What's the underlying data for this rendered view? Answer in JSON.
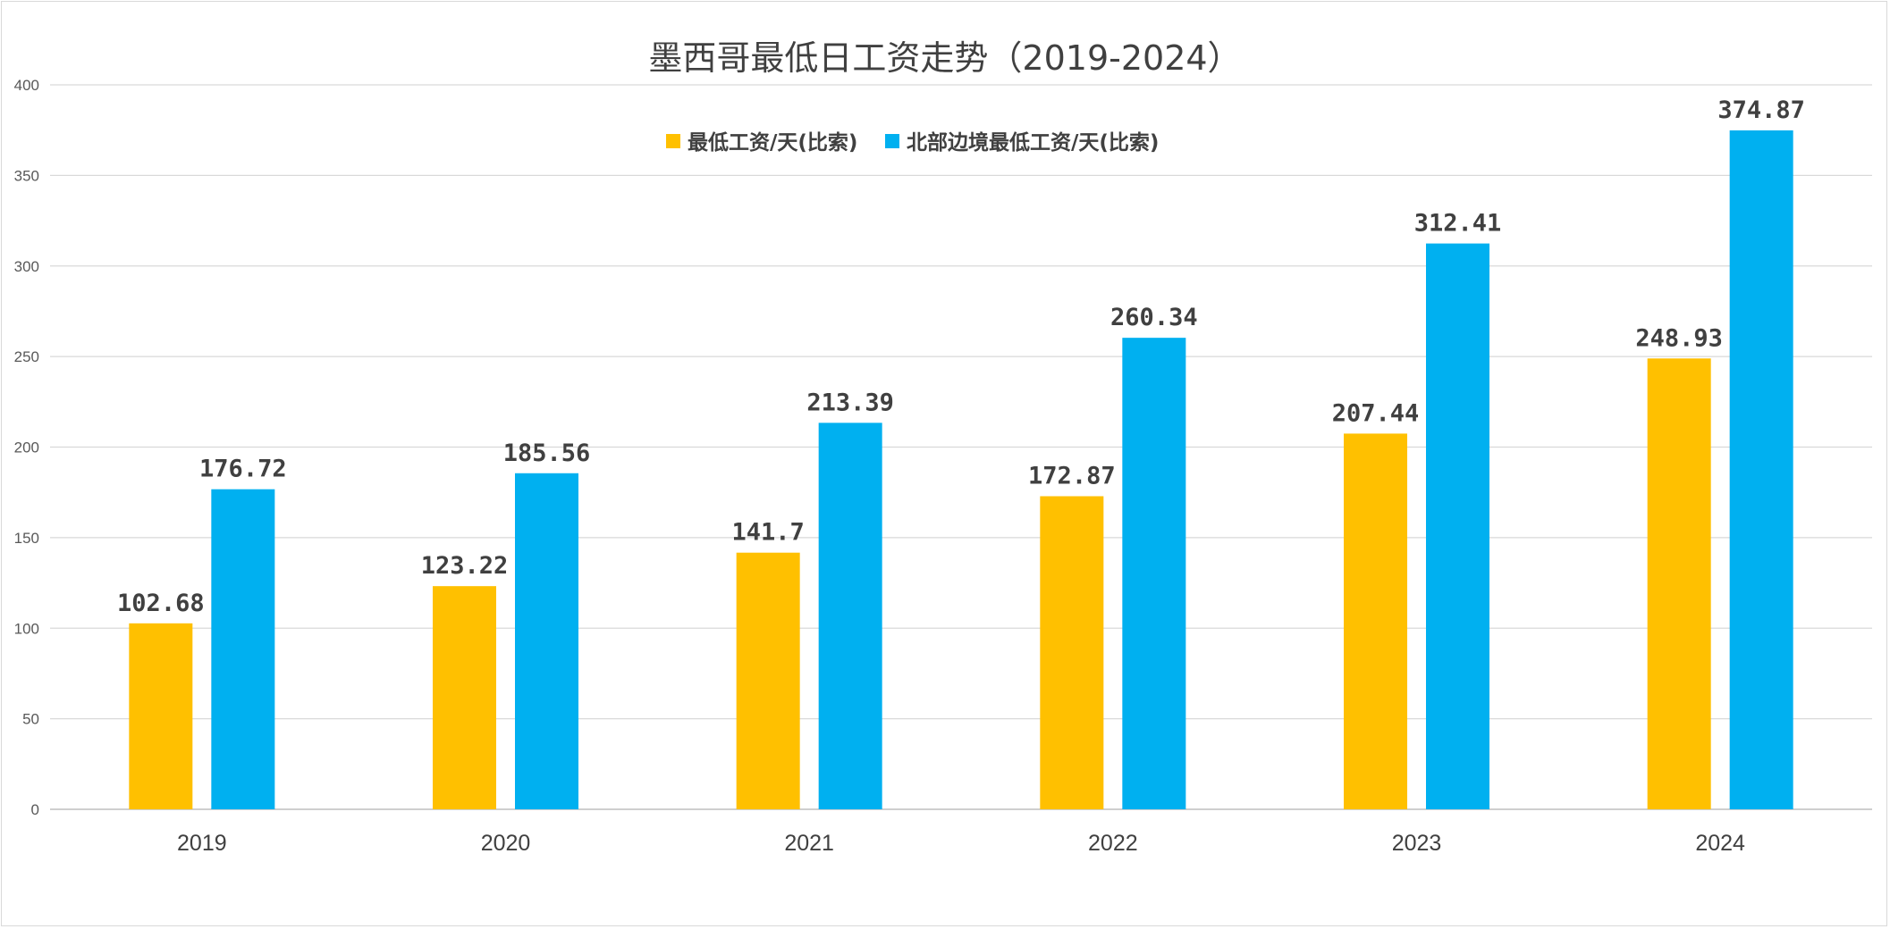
{
  "chart_data": {
    "type": "bar",
    "title": "墨西哥最低日工资走势（2019-2024）",
    "categories": [
      "2019",
      "2020",
      "2021",
      "2022",
      "2023",
      "2024"
    ],
    "series": [
      {
        "name": "最低工资/天(比索)",
        "color": "#FFC000",
        "values": [
          102.68,
          123.22,
          141.7,
          172.87,
          207.44,
          248.93
        ],
        "labels": [
          "102.68",
          "123.22",
          "141.7",
          "172.87",
          "207.44",
          "248.93"
        ]
      },
      {
        "name": "北部边境最低工资/天(比索)",
        "color": "#00B0F0",
        "values": [
          176.72,
          185.56,
          213.39,
          260.34,
          312.41,
          374.87
        ],
        "labels": [
          "176.72",
          "185.56",
          "213.39",
          "260.34",
          "312.41",
          "374.87"
        ]
      }
    ],
    "ylim": [
      0,
      400
    ],
    "yticks": [
      0,
      50,
      100,
      150,
      200,
      250,
      300,
      350,
      400
    ],
    "grid": true,
    "legend_position": "top"
  }
}
